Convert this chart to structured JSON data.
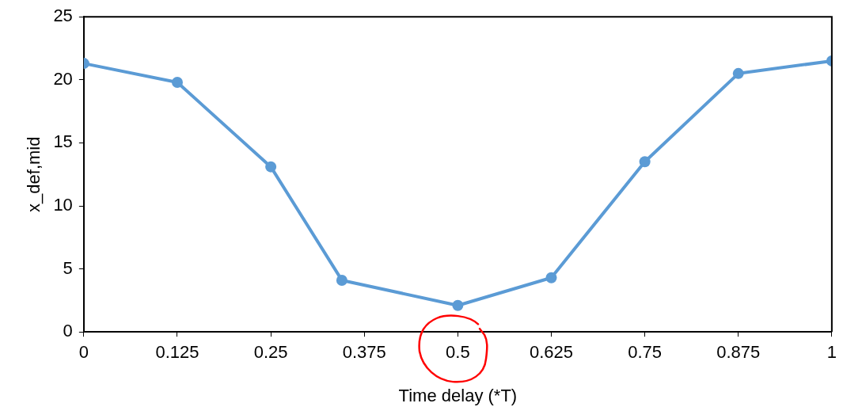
{
  "chart_data": {
    "type": "line",
    "xlabel": "Time delay (*T)",
    "ylabel": "x_def,mid",
    "x": [
      0,
      0.125,
      0.25,
      0.345,
      0.5,
      0.625,
      0.75,
      0.875,
      1
    ],
    "series": [
      {
        "color": "#5b9bd5",
        "values": [
          21.3,
          19.8,
          13.1,
          4.1,
          2.1,
          4.3,
          13.5,
          20.5,
          21.5
        ]
      }
    ],
    "xlim": [
      0,
      1
    ],
    "xticks": [
      0,
      0.125,
      0.25,
      0.375,
      0.5,
      0.625,
      0.75,
      0.875,
      1
    ],
    "ylim": [
      0,
      25
    ],
    "yticks": [
      0,
      5,
      10,
      15,
      20,
      25
    ],
    "grid": false,
    "legend": false,
    "marker": "circle",
    "line_style": "solid"
  }
}
